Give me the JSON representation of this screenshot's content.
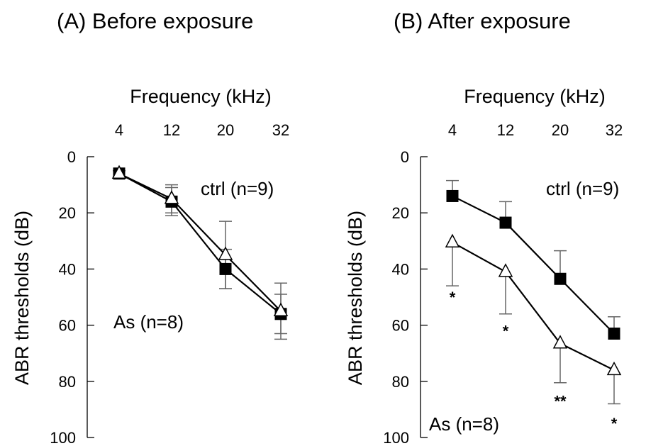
{
  "chart_data": [
    {
      "type": "line",
      "title": "(A) Before exposure",
      "xlabel": "Frequency (kHz)",
      "ylabel": "ABR thresholds (dB)",
      "x": [
        4,
        12,
        20,
        32
      ],
      "x_tick_labels": [
        "4",
        "12",
        "20",
        "32"
      ],
      "ylim": [
        0,
        100
      ],
      "y_inverted": true,
      "y_ticks": [
        0,
        20,
        40,
        60,
        80,
        100
      ],
      "x_axis_position": "top",
      "grid": false,
      "series": [
        {
          "name": "ctrl (n=9)",
          "marker": "filled-square",
          "color": "#000000",
          "values": [
            6,
            16,
            40,
            56
          ],
          "error_up": [
            1,
            5,
            7,
            7
          ],
          "error_down": [
            1,
            5,
            7,
            7
          ]
        },
        {
          "name": "As (n=8)",
          "marker": "open-triangle",
          "color": "#000000",
          "values": [
            6,
            15,
            35,
            55
          ],
          "error_up": [
            1,
            5,
            12,
            10
          ],
          "error_down": [
            1,
            5,
            12,
            10
          ]
        }
      ],
      "annotations": []
    },
    {
      "type": "line",
      "title": "(B) After exposure",
      "xlabel": "Frequency (kHz)",
      "ylabel": "ABR thresholds (dB)",
      "x": [
        4,
        12,
        20,
        32
      ],
      "x_tick_labels": [
        "4",
        "12",
        "20",
        "32"
      ],
      "ylim": [
        0,
        100
      ],
      "y_inverted": true,
      "y_ticks": [
        0,
        20,
        40,
        60,
        80,
        100
      ],
      "x_axis_position": "top",
      "grid": false,
      "series": [
        {
          "name": "ctrl (n=9)",
          "marker": "filled-square",
          "color": "#000000",
          "values": [
            14,
            23.5,
            43.5,
            63
          ],
          "error_up": [
            5.5,
            7.5,
            10,
            6
          ],
          "error_down": [
            0,
            0,
            0,
            0
          ]
        },
        {
          "name": "As (n=8)",
          "marker": "open-triangle",
          "color": "#000000",
          "values": [
            30.5,
            41,
            66.5,
            76
          ],
          "error_up": [
            0,
            0,
            0,
            0
          ],
          "error_down": [
            15.5,
            15,
            14,
            12
          ]
        }
      ],
      "annotations": [
        {
          "text": "*",
          "x": 4,
          "y": 52
        },
        {
          "text": "*",
          "x": 12,
          "y": 64
        },
        {
          "text": "**",
          "x": 20,
          "y": 89
        },
        {
          "text": "*",
          "x": 32,
          "y": 97
        }
      ]
    }
  ]
}
